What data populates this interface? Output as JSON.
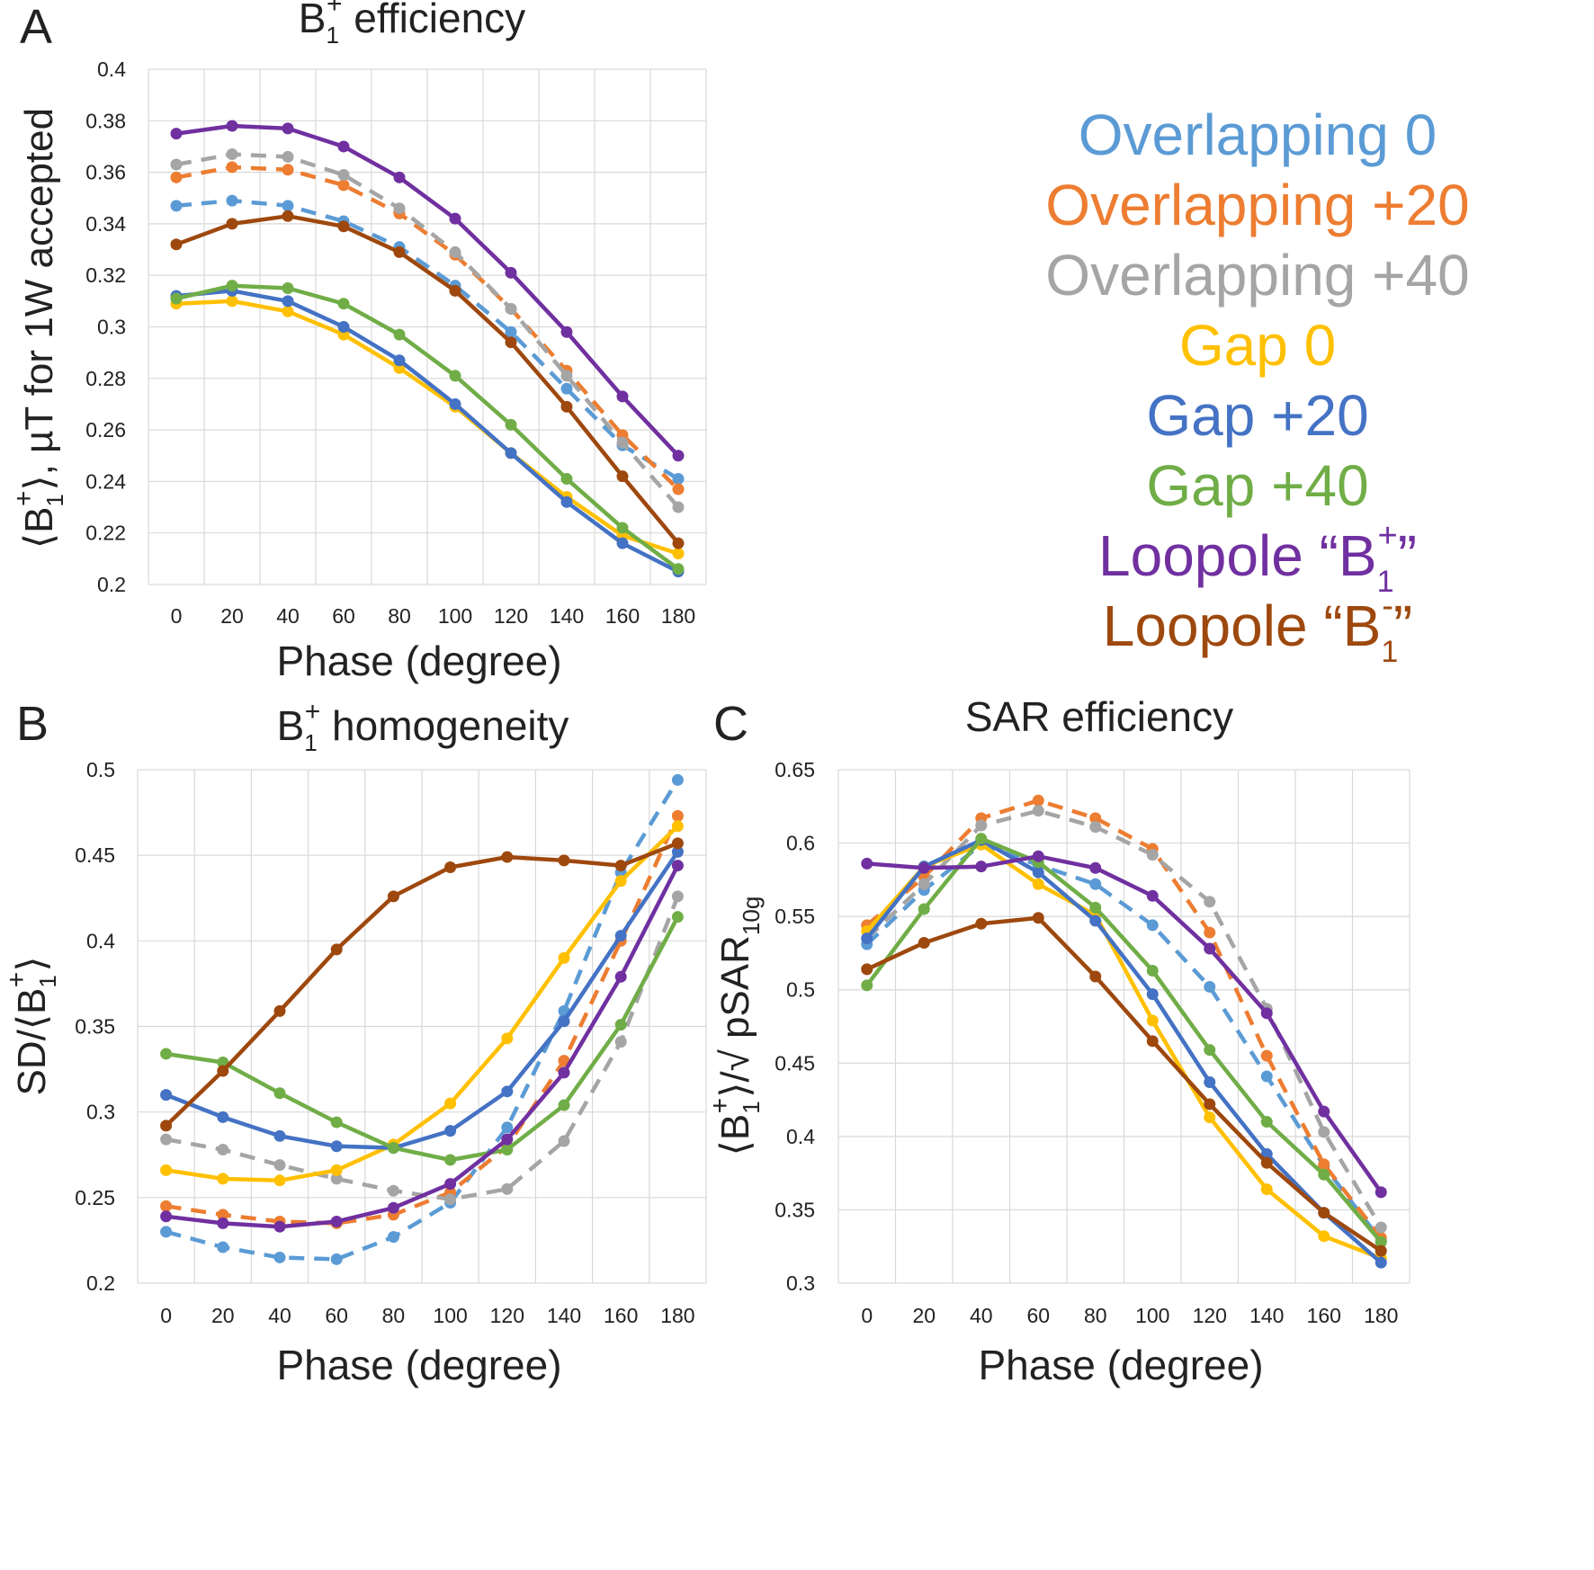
{
  "panel_letters": [
    "A",
    "B",
    "C"
  ],
  "colors": {
    "overlap0": "#5b9bd5",
    "overlap20": "#ed7d31",
    "overlap40": "#a5a5a5",
    "gap0": "#ffc000",
    "gap20": "#4472c4",
    "gap40": "#70ad47",
    "loopoleB1plus": "#7030a0",
    "loopoleB1minus": "#9e480e"
  },
  "legend": [
    {
      "label": "Overlapping 0",
      "color": "#5b9bd5"
    },
    {
      "label": "Overlapping +20",
      "color": "#ed7d31"
    },
    {
      "label": "Overlapping +40",
      "color": "#a5a5a5"
    },
    {
      "label": "Gap 0",
      "color": "#ffc000"
    },
    {
      "label": "Gap +20",
      "color": "#4472c4"
    },
    {
      "label": "Gap +40",
      "color": "#70ad47"
    },
    {
      "label": "Loopole “B",
      "sub": "1",
      "sup": "+",
      "close": "”",
      "color": "#7030a0"
    },
    {
      "label": "Loopole “B",
      "sub": "1",
      "sup": "-",
      "close": "”",
      "color": "#9e480e"
    }
  ],
  "chart_data": [
    {
      "panel": "A",
      "type": "line",
      "title": {
        "pre": "B",
        "sub": "1",
        "sup": "+",
        "post": " efficiency"
      },
      "xlabel": "Phase (degree)",
      "ylabel": {
        "pre": "⟨B",
        "sub": "1",
        "sup": "+",
        "post": "⟩, µT for 1W accepted"
      },
      "x": [
        0,
        20,
        40,
        60,
        80,
        100,
        120,
        140,
        160,
        180
      ],
      "xticks": [
        "0",
        "20",
        "40",
        "60",
        "80",
        "100",
        "120",
        "140",
        "160",
        "180"
      ],
      "ylim": [
        0.2,
        0.4
      ],
      "yticks": [
        "0.2",
        "0.22",
        "0.24",
        "0.26",
        "0.28",
        "0.3",
        "0.32",
        "0.34",
        "0.36",
        "0.38",
        "0.4"
      ],
      "series": [
        {
          "name": "Overlapping 0",
          "dashed": true,
          "values": [
            0.347,
            0.349,
            0.347,
            0.341,
            0.331,
            0.316,
            0.298,
            0.276,
            0.254,
            0.241
          ]
        },
        {
          "name": "Overlapping +20",
          "dashed": true,
          "values": [
            0.358,
            0.362,
            0.361,
            0.355,
            0.344,
            0.328,
            0.307,
            0.283,
            0.258,
            0.237
          ]
        },
        {
          "name": "Overlapping +40",
          "dashed": true,
          "values": [
            0.363,
            0.367,
            0.366,
            0.359,
            0.346,
            0.329,
            0.307,
            0.281,
            0.255,
            0.23
          ]
        },
        {
          "name": "Gap 0",
          "dashed": false,
          "values": [
            0.309,
            0.31,
            0.306,
            0.297,
            0.284,
            0.269,
            0.251,
            0.234,
            0.219,
            0.212
          ]
        },
        {
          "name": "Gap +20",
          "dashed": false,
          "values": [
            0.312,
            0.314,
            0.31,
            0.3,
            0.287,
            0.27,
            0.251,
            0.232,
            0.216,
            0.205
          ]
        },
        {
          "name": "Gap +40",
          "dashed": false,
          "values": [
            0.311,
            0.316,
            0.315,
            0.309,
            0.297,
            0.281,
            0.262,
            0.241,
            0.222,
            0.206
          ]
        },
        {
          "name": "Loopole “B1+”",
          "dashed": false,
          "values": [
            0.375,
            0.378,
            0.377,
            0.37,
            0.358,
            0.342,
            0.321,
            0.298,
            0.273,
            0.25
          ]
        },
        {
          "name": "Loopole “B1-”",
          "dashed": false,
          "values": [
            0.332,
            0.34,
            0.343,
            0.339,
            0.329,
            0.314,
            0.294,
            0.269,
            0.242,
            0.216
          ]
        }
      ]
    },
    {
      "panel": "B",
      "type": "line",
      "title": {
        "pre": "B",
        "sub": "1",
        "sup": "+",
        "post": " homogeneity"
      },
      "xlabel": "Phase (degree)",
      "ylabel": {
        "pre": "SD/⟨B",
        "sub": "1",
        "sup": "+",
        "post": "⟩"
      },
      "x": [
        0,
        20,
        40,
        60,
        80,
        100,
        120,
        140,
        160,
        180
      ],
      "xticks": [
        "0",
        "20",
        "40",
        "60",
        "80",
        "100",
        "120",
        "140",
        "160",
        "180"
      ],
      "ylim": [
        0.2,
        0.5
      ],
      "yticks": [
        "0.2",
        "0.25",
        "0.3",
        "0.35",
        "0.4",
        "0.45",
        "0.5"
      ],
      "series": [
        {
          "name": "Overlapping 0",
          "dashed": true,
          "values": [
            0.23,
            0.221,
            0.215,
            0.214,
            0.227,
            0.247,
            0.291,
            0.359,
            0.44,
            0.494
          ]
        },
        {
          "name": "Overlapping +20",
          "dashed": true,
          "values": [
            0.245,
            0.24,
            0.236,
            0.235,
            0.24,
            0.253,
            0.28,
            0.33,
            0.4,
            0.473
          ]
        },
        {
          "name": "Overlapping +40",
          "dashed": true,
          "values": [
            0.284,
            0.278,
            0.269,
            0.261,
            0.254,
            0.249,
            0.255,
            0.283,
            0.341,
            0.426
          ]
        },
        {
          "name": "Gap 0",
          "dashed": false,
          "values": [
            0.266,
            0.261,
            0.26,
            0.266,
            0.281,
            0.305,
            0.343,
            0.39,
            0.435,
            0.467
          ]
        },
        {
          "name": "Gap +20",
          "dashed": false,
          "values": [
            0.31,
            0.297,
            0.286,
            0.28,
            0.279,
            0.289,
            0.312,
            0.353,
            0.403,
            0.452
          ]
        },
        {
          "name": "Gap +40",
          "dashed": false,
          "values": [
            0.334,
            0.329,
            0.311,
            0.294,
            0.279,
            0.272,
            0.278,
            0.304,
            0.351,
            0.414
          ]
        },
        {
          "name": "Loopole “B1+”",
          "dashed": false,
          "values": [
            0.239,
            0.235,
            0.233,
            0.236,
            0.244,
            0.258,
            0.284,
            0.323,
            0.379,
            0.444
          ]
        },
        {
          "name": "Loopole “B1-”",
          "dashed": false,
          "values": [
            0.292,
            0.324,
            0.359,
            0.395,
            0.426,
            0.443,
            0.449,
            0.447,
            0.444,
            0.457
          ]
        }
      ]
    },
    {
      "panel": "C",
      "type": "line",
      "title": {
        "pre": "SAR efficiency",
        "sub": "",
        "sup": "",
        "post": ""
      },
      "xlabel": "Phase (degree)",
      "ylabel": {
        "pre": "⟨B",
        "sub": "1",
        "sup": "+",
        "post": "⟩/√ pSAR",
        "sub2": "10g"
      },
      "x": [
        0,
        20,
        40,
        60,
        80,
        100,
        120,
        140,
        160,
        180
      ],
      "xticks": [
        "0",
        "20",
        "40",
        "60",
        "80",
        "100",
        "120",
        "140",
        "160",
        "180"
      ],
      "ylim": [
        0.3,
        0.65
      ],
      "yticks": [
        "0.3",
        "0.35",
        "0.4",
        "0.45",
        "0.5",
        "0.55",
        "0.6",
        "0.65"
      ],
      "series": [
        {
          "name": "Overlapping 0",
          "dashed": true,
          "values": [
            0.531,
            0.568,
            0.599,
            0.585,
            0.572,
            0.544,
            0.502,
            0.441,
            0.38,
            0.329
          ]
        },
        {
          "name": "Overlapping +20",
          "dashed": true,
          "values": [
            0.544,
            0.577,
            0.617,
            0.629,
            0.617,
            0.596,
            0.539,
            0.455,
            0.381,
            0.331
          ]
        },
        {
          "name": "Overlapping +40",
          "dashed": true,
          "values": [
            0.535,
            0.572,
            0.612,
            0.622,
            0.611,
            0.592,
            0.56,
            0.487,
            0.403,
            0.338
          ]
        },
        {
          "name": "Gap 0",
          "dashed": false,
          "values": [
            0.54,
            0.584,
            0.599,
            0.572,
            0.551,
            0.479,
            0.413,
            0.364,
            0.332,
            0.317
          ]
        },
        {
          "name": "Gap +20",
          "dashed": false,
          "values": [
            0.535,
            0.584,
            0.602,
            0.58,
            0.547,
            0.497,
            0.437,
            0.388,
            0.348,
            0.314
          ]
        },
        {
          "name": "Gap +40",
          "dashed": false,
          "values": [
            0.503,
            0.555,
            0.603,
            0.587,
            0.556,
            0.513,
            0.459,
            0.41,
            0.374,
            0.328
          ]
        },
        {
          "name": "Loopole “B1+”",
          "dashed": false,
          "values": [
            0.586,
            0.583,
            0.584,
            0.591,
            0.583,
            0.564,
            0.528,
            0.484,
            0.417,
            0.362
          ]
        },
        {
          "name": "Loopole “B1-”",
          "dashed": false,
          "values": [
            0.514,
            0.532,
            0.545,
            0.549,
            0.509,
            0.465,
            0.422,
            0.382,
            0.348,
            0.322
          ]
        }
      ]
    }
  ]
}
